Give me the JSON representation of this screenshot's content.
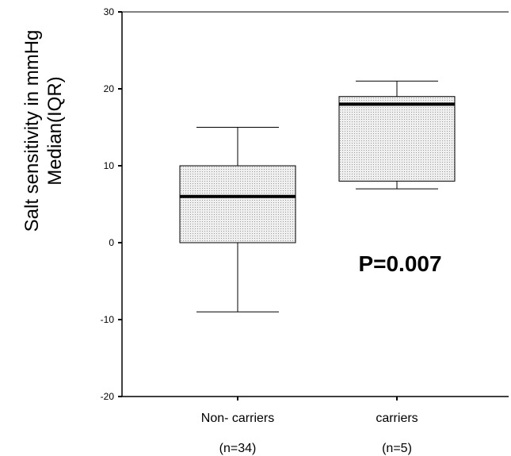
{
  "chart_data": {
    "type": "box",
    "title": "",
    "ylabel_lines": [
      "Salt sensitivity in mmHg",
      "Median(IQR)"
    ],
    "xlabel": "",
    "ylim": [
      -20,
      30
    ],
    "yticks": [
      30,
      20,
      10,
      0,
      -10,
      -20
    ],
    "categories": [
      "Non- carriers",
      "carriers"
    ],
    "category_counts": [
      "(n=34)",
      "(n=5)"
    ],
    "boxes": [
      {
        "category": "Non- carriers",
        "min": -9,
        "q1": 0,
        "median": 6,
        "q3": 10,
        "max": 15
      },
      {
        "category": "carriers",
        "min": 7,
        "q1": 8,
        "median": 18,
        "q3": 19,
        "max": 21
      }
    ],
    "annotation": "P=0.007",
    "grid": false,
    "box_fill": "#e4e4e4"
  }
}
